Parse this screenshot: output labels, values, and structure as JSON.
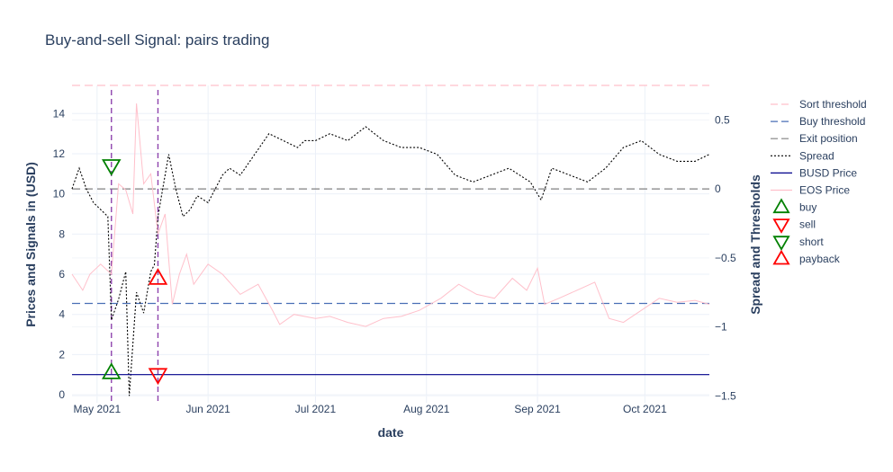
{
  "chart_data": {
    "type": "line",
    "title": "Buy-and-sell Signal: pairs trading",
    "xlabel": "date",
    "ylabel_left": "Prices and Signals in (USD)",
    "ylabel_right": "Spread and Thresholds",
    "x_range": [
      "2021-04-24",
      "2021-10-19"
    ],
    "ylim_left": [
      -0.4,
      15.4
    ],
    "ylim_right": [
      -1.55,
      0.75
    ],
    "x_ticks": [
      {
        "date": "2021-05-01",
        "label": "May 2021"
      },
      {
        "date": "2021-06-01",
        "label": "Jun 2021"
      },
      {
        "date": "2021-07-01",
        "label": "Jul 2021"
      },
      {
        "date": "2021-08-01",
        "label": "Aug 2021"
      },
      {
        "date": "2021-09-01",
        "label": "Sep 2021"
      },
      {
        "date": "2021-10-01",
        "label": "Oct 2021"
      }
    ],
    "y_ticks_left": [
      0,
      2,
      4,
      6,
      8,
      10,
      12,
      14
    ],
    "y_ticks_right": [
      {
        "value": 0.5,
        "label": "0.5"
      },
      {
        "value": 0,
        "label": "0"
      },
      {
        "value": -0.5,
        "label": "−0.5"
      },
      {
        "value": -1,
        "label": "−1"
      },
      {
        "value": -1.5,
        "label": "−1.5"
      }
    ],
    "thresholds": [
      {
        "name": "Sort threshold",
        "axis": "right",
        "value": 0.75,
        "color": "#ffc0cb"
      },
      {
        "name": "Buy threshold",
        "axis": "right",
        "value": -0.83,
        "color": "#4a6fb5"
      },
      {
        "name": "Exit position",
        "axis": "right",
        "value": 0,
        "color": "#808080"
      }
    ],
    "signal_dates": [
      "2021-05-05",
      "2021-05-18"
    ],
    "series": [
      {
        "name": "Spread",
        "axis": "right",
        "color": "#000000",
        "x": [
          "2021-04-24",
          "2021-04-26",
          "2021-04-28",
          "2021-04-30",
          "2021-05-02",
          "2021-05-04",
          "2021-05-05",
          "2021-05-07",
          "2021-05-09",
          "2021-05-10",
          "2021-05-12",
          "2021-05-14",
          "2021-05-16",
          "2021-05-17",
          "2021-05-18",
          "2021-05-19",
          "2021-05-21",
          "2021-05-23",
          "2021-05-25",
          "2021-05-27",
          "2021-05-29",
          "2021-06-01",
          "2021-06-03",
          "2021-06-05",
          "2021-06-07",
          "2021-06-10",
          "2021-06-14",
          "2021-06-18",
          "2021-06-22",
          "2021-06-26",
          "2021-06-28",
          "2021-07-01",
          "2021-07-05",
          "2021-07-10",
          "2021-07-15",
          "2021-07-20",
          "2021-07-25",
          "2021-07-30",
          "2021-08-04",
          "2021-08-09",
          "2021-08-14",
          "2021-08-19",
          "2021-08-24",
          "2021-08-30",
          "2021-09-02",
          "2021-09-05",
          "2021-09-10",
          "2021-09-15",
          "2021-09-20",
          "2021-09-25",
          "2021-09-30",
          "2021-10-05",
          "2021-10-10",
          "2021-10-15",
          "2021-10-19"
        ],
        "values": [
          0.0,
          0.15,
          0.0,
          -0.1,
          -0.15,
          -0.2,
          -0.95,
          -0.8,
          -0.6,
          -1.5,
          -0.75,
          -0.9,
          -0.6,
          -0.55,
          -0.2,
          -0.05,
          0.25,
          0.0,
          -0.2,
          -0.15,
          -0.05,
          -0.1,
          0.0,
          0.1,
          0.15,
          0.1,
          0.25,
          0.4,
          0.35,
          0.3,
          0.35,
          0.35,
          0.4,
          0.35,
          0.45,
          0.35,
          0.3,
          0.3,
          0.25,
          0.1,
          0.05,
          0.1,
          0.15,
          0.05,
          -0.08,
          0.15,
          0.1,
          0.05,
          0.15,
          0.3,
          0.35,
          0.25,
          0.2,
          0.2,
          0.25
        ]
      },
      {
        "name": "BUSD Price",
        "axis": "left",
        "color": "#00008b",
        "x": [
          "2021-04-24",
          "2021-10-19"
        ],
        "values": [
          1.0,
          1.0
        ]
      },
      {
        "name": "EOS Price",
        "axis": "left",
        "color": "#ffc0cb",
        "x": [
          "2021-04-24",
          "2021-04-27",
          "2021-04-29",
          "2021-05-02",
          "2021-05-05",
          "2021-05-07",
          "2021-05-09",
          "2021-05-11",
          "2021-05-12",
          "2021-05-14",
          "2021-05-16",
          "2021-05-18",
          "2021-05-20",
          "2021-05-22",
          "2021-05-24",
          "2021-05-26",
          "2021-05-28",
          "2021-06-01",
          "2021-06-05",
          "2021-06-10",
          "2021-06-15",
          "2021-06-19",
          "2021-06-21",
          "2021-06-25",
          "2021-07-01",
          "2021-07-05",
          "2021-07-10",
          "2021-07-15",
          "2021-07-20",
          "2021-07-25",
          "2021-07-30",
          "2021-08-05",
          "2021-08-10",
          "2021-08-15",
          "2021-08-20",
          "2021-08-25",
          "2021-08-29",
          "2021-09-01",
          "2021-09-03",
          "2021-09-07",
          "2021-09-12",
          "2021-09-17",
          "2021-09-21",
          "2021-09-25",
          "2021-09-30",
          "2021-10-05",
          "2021-10-10",
          "2021-10-15",
          "2021-10-19"
        ],
        "values": [
          6.0,
          5.2,
          6.0,
          6.5,
          6.0,
          10.5,
          10.2,
          9.0,
          14.5,
          10.5,
          11.0,
          8.0,
          9.0,
          4.5,
          6.0,
          7.0,
          5.5,
          6.5,
          6.0,
          5.0,
          5.5,
          4.2,
          3.5,
          4.0,
          3.8,
          3.9,
          3.6,
          3.4,
          3.8,
          3.9,
          4.2,
          4.8,
          5.5,
          5.0,
          4.8,
          5.8,
          5.2,
          6.3,
          4.5,
          4.8,
          5.2,
          5.6,
          3.8,
          3.6,
          4.2,
          4.8,
          4.6,
          4.7,
          4.5
        ]
      }
    ],
    "markers": [
      {
        "name": "buy",
        "symbol": "triangle-up",
        "color": "#008000",
        "x": "2021-05-05",
        "y": 1.1
      },
      {
        "name": "sell",
        "symbol": "triangle-down",
        "color": "#ff0000",
        "x": "2021-05-18",
        "y": 1.0
      },
      {
        "name": "short",
        "symbol": "triangle-down",
        "color": "#008000",
        "x": "2021-05-05",
        "y": 11.4
      },
      {
        "name": "payback",
        "symbol": "triangle-up",
        "color": "#ff0000",
        "x": "2021-05-18",
        "y": 5.8
      }
    ],
    "legend": {
      "placement": "right",
      "entries": [
        {
          "name": "Sort threshold",
          "kind": "dash",
          "color": "#ffc0cb"
        },
        {
          "name": "Buy threshold",
          "kind": "dash",
          "color": "#4a6fb5"
        },
        {
          "name": "Exit position",
          "kind": "dash",
          "color": "#808080"
        },
        {
          "name": "Spread",
          "kind": "dot",
          "color": "#000000"
        },
        {
          "name": "BUSD Price",
          "kind": "solid",
          "color": "#00008b"
        },
        {
          "name": "EOS Price",
          "kind": "solid",
          "color": "#ffc0cb"
        },
        {
          "name": "buy",
          "kind": "triangle-up",
          "color": "#008000"
        },
        {
          "name": "sell",
          "kind": "triangle-down",
          "color": "#ff0000"
        },
        {
          "name": "short",
          "kind": "triangle-down",
          "color": "#008000"
        },
        {
          "name": "payback",
          "kind": "triangle-up",
          "color": "#ff0000"
        }
      ]
    },
    "grid": true
  }
}
